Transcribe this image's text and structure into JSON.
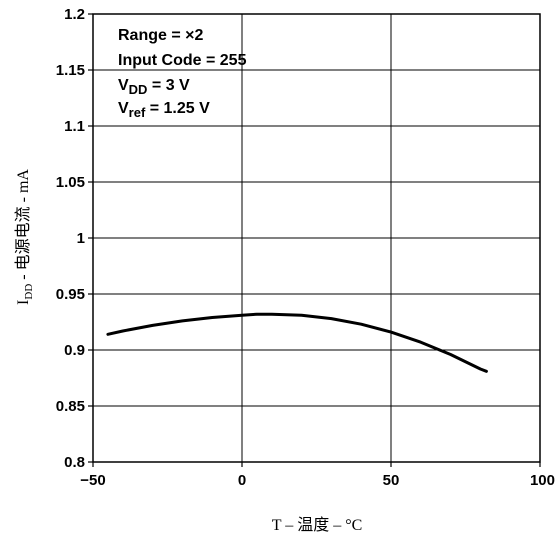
{
  "chart_data": {
    "type": "line",
    "xlabel": "T – 温度 – °C",
    "ylabel_main": "I",
    "ylabel_sub": "DD",
    "ylabel_rest": " - 电源电流 - mA",
    "xlim": [
      -50,
      100
    ],
    "ylim": [
      0.8,
      1.2
    ],
    "grid": true,
    "x_ticks": [
      -50,
      0,
      50,
      100
    ],
    "x_tick_labels": [
      "−50",
      "0",
      "50",
      "100"
    ],
    "y_ticks": [
      0.8,
      0.85,
      0.9,
      0.95,
      1.0,
      1.05,
      1.1,
      1.15,
      1.2
    ],
    "y_tick_labels": [
      "0.8",
      "0.85",
      "0.9",
      "0.95",
      "1",
      "1.05",
      "1.1",
      "1.15",
      "1.2"
    ],
    "annotations": [
      {
        "text": "Range = ×2"
      },
      {
        "text": "Input Code = 255"
      },
      {
        "main": "V",
        "sub": "DD",
        "rest": " = 3 V"
      },
      {
        "main": "V",
        "sub": "ref",
        "rest": " = 1.25 V"
      }
    ],
    "series": [
      {
        "x": [
          -45,
          -40,
          -30,
          -20,
          -10,
          0,
          5,
          10,
          20,
          30,
          40,
          50,
          60,
          70,
          80,
          82
        ],
        "y": [
          0.914,
          0.917,
          0.922,
          0.926,
          0.929,
          0.931,
          0.932,
          0.932,
          0.931,
          0.928,
          0.923,
          0.916,
          0.907,
          0.896,
          0.883,
          0.881
        ]
      }
    ]
  }
}
